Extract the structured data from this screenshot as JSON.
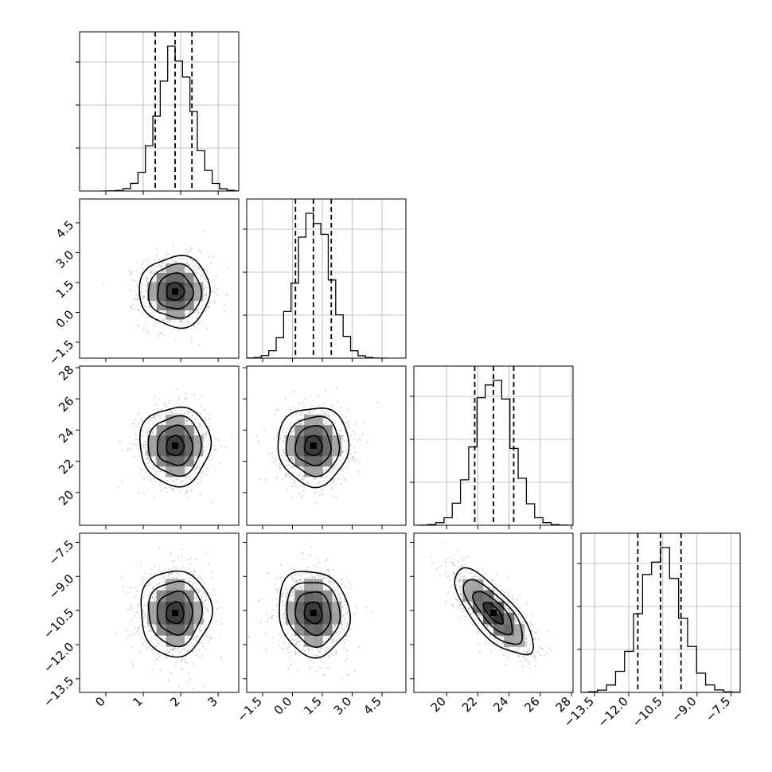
{
  "chart_data": {
    "type": "corner",
    "title": "",
    "parameters": [
      {
        "index": 0,
        "median": 1.85,
        "q16": 1.32,
        "q84": 2.3,
        "sigma": 0.45,
        "range": [
          -0.7,
          3.55
        ],
        "ticks": [
          0,
          1,
          2,
          3
        ],
        "tick_labels": [
          "0",
          "1",
          "2",
          "3"
        ]
      },
      {
        "index": 1,
        "median": 1.05,
        "q16": 0.15,
        "q84": 1.95,
        "sigma": 0.85,
        "range": [
          -2.3,
          5.7
        ],
        "ticks": [
          -1.5,
          0.0,
          1.5,
          3.0,
          4.5
        ],
        "tick_labels": [
          "−1.5",
          "0.0",
          "1.5",
          "3.0",
          "4.5"
        ]
      },
      {
        "index": 2,
        "median": 23.0,
        "q16": 21.8,
        "q84": 24.3,
        "sigma": 1.2,
        "range": [
          17.9,
          28.1
        ],
        "ticks": [
          20,
          22,
          24,
          26,
          28
        ],
        "tick_labels": [
          "20",
          "22",
          "24",
          "26",
          "28"
        ]
      },
      {
        "index": 3,
        "median": -10.6,
        "q16": -11.6,
        "q84": -9.7,
        "sigma": 0.9,
        "range": [
          -14.1,
          -7.1
        ],
        "ticks": [
          -13.5,
          -12.0,
          -10.5,
          -9.0,
          -7.5
        ],
        "tick_labels": [
          "−13.5",
          "−12.0",
          "−10.5",
          "−9.0",
          "−7.5"
        ]
      }
    ],
    "correlations": [
      {
        "pair": [
          0,
          1
        ],
        "rho": 0.0
      },
      {
        "pair": [
          0,
          2
        ],
        "rho": 0.0
      },
      {
        "pair": [
          1,
          2
        ],
        "rho": 0.0
      },
      {
        "pair": [
          0,
          3
        ],
        "rho": 0.0
      },
      {
        "pair": [
          1,
          3
        ],
        "rho": -0.1
      },
      {
        "pair": [
          2,
          3
        ],
        "rho": -0.75
      }
    ],
    "histogram_bins": 20,
    "contour_levels_sigma": [
      0.5,
      1.0,
      1.5,
      2.0
    ],
    "grid": true,
    "quantile_lines": "dashed"
  }
}
